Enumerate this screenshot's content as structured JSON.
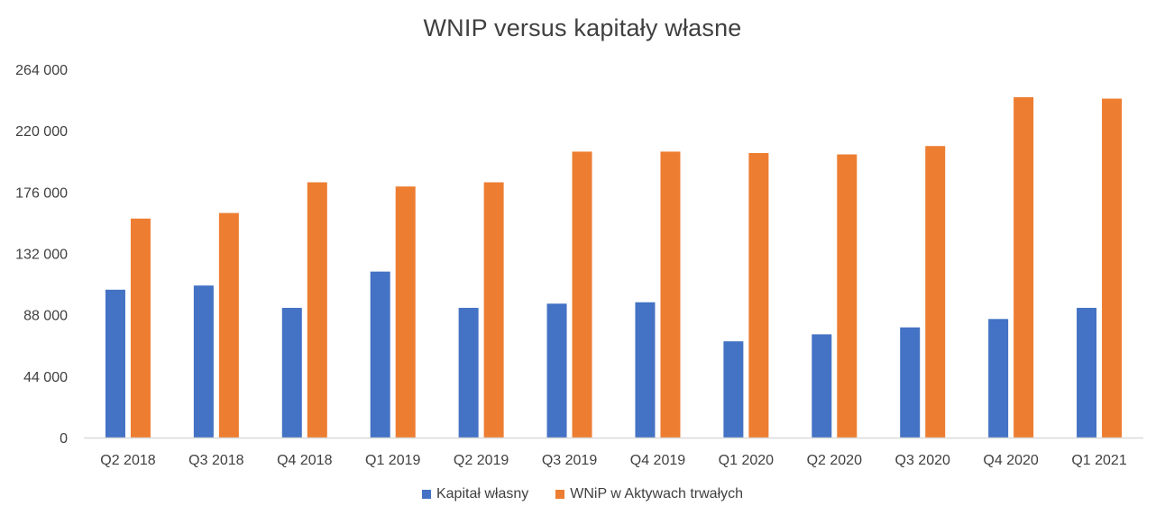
{
  "chart_data": {
    "type": "bar",
    "title": "WNIP versus kapitały własne",
    "xlabel": "",
    "ylabel": "",
    "categories": [
      "Q2 2018",
      "Q3 2018",
      "Q4 2018",
      "Q1 2019",
      "Q2 2019",
      "Q3 2019",
      "Q4 2019",
      "Q1 2020",
      "Q2 2020",
      "Q3 2020",
      "Q4 2020",
      "Q1 2021"
    ],
    "series": [
      {
        "name": "Kapitał własny",
        "color": "#4472C4",
        "values": [
          106000,
          109000,
          93000,
          119000,
          93000,
          96000,
          97000,
          69000,
          74000,
          79000,
          85000,
          93000
        ]
      },
      {
        "name": "WNiP w Aktywach trwałych",
        "color": "#ED7D31",
        "values": [
          157000,
          161000,
          183000,
          180000,
          183000,
          205000,
          205000,
          204000,
          203000,
          209000,
          244000,
          243000
        ]
      }
    ],
    "ylim": [
      0,
      264000
    ],
    "yticks": [
      0,
      44000,
      88000,
      132000,
      176000,
      220000,
      264000
    ],
    "ytick_labels": [
      "0",
      "44 000",
      "88 000",
      "132 000",
      "176 000",
      "220 000",
      "264 000"
    ],
    "grid": false,
    "legend_position": "bottom"
  }
}
